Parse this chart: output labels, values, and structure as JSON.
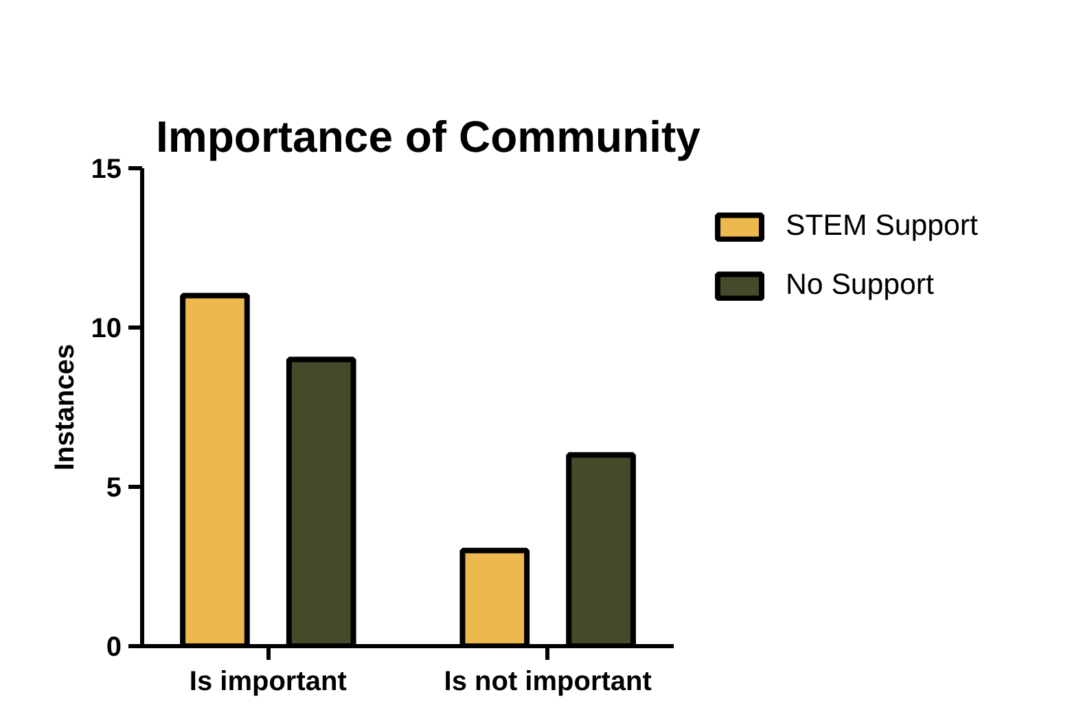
{
  "chart_data": {
    "type": "bar",
    "title": "Importance of Community",
    "ylabel": "Instances",
    "categories": [
      "Is important",
      "Is not important"
    ],
    "series": [
      {
        "name": "STEM Support",
        "color": "#edb94f",
        "values": [
          11,
          3
        ]
      },
      {
        "name": "No Support",
        "color": "#434b2a",
        "values": [
          9,
          6
        ]
      }
    ],
    "ylim": [
      0,
      15
    ],
    "yticks": [
      0,
      5,
      10,
      15
    ],
    "grid": false,
    "legend": "right"
  }
}
